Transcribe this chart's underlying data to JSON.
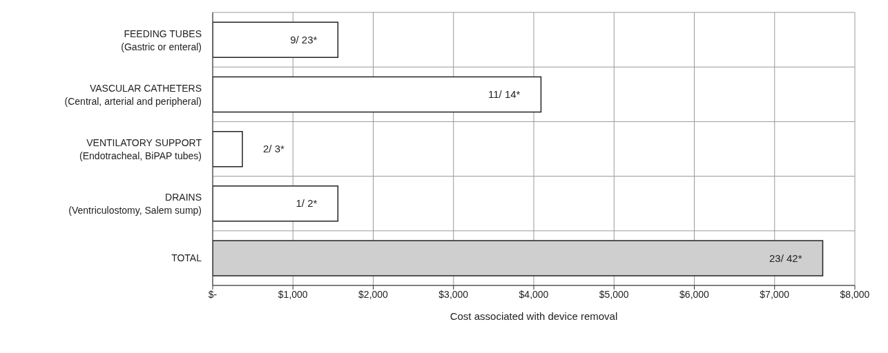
{
  "chart_data": {
    "type": "bar",
    "orientation": "horizontal",
    "xlabel": "Cost associated with device removal",
    "categories": [
      "FEEDING TUBES\n(Gastric or enteral)",
      "VASCULAR CATHETERS\n(Central, arterial and peripheral)",
      "VENTILATORY SUPPORT\n(Endotracheal, BiPAP tubes)",
      "DRAINS\n(Ventriculostomy, Salem sump)",
      "TOTAL"
    ],
    "values": [
      1560,
      4090,
      370,
      1560,
      7600
    ],
    "colors": [
      "#ffffff",
      "#ffffff",
      "#ffffff",
      "#ffffff",
      "#cfcfcf"
    ],
    "value_labels": [
      "9/ 23*",
      "11/ 14*",
      "2/ 3*",
      "1/ 2*",
      "23/ 42*"
    ],
    "xlim": [
      0,
      8000
    ],
    "xticks": [
      {
        "value": 0,
        "label": "$-"
      },
      {
        "value": 1000,
        "label": "$1,000"
      },
      {
        "value": 2000,
        "label": "$2,000"
      },
      {
        "value": 3000,
        "label": "$3,000"
      },
      {
        "value": 4000,
        "label": "$4,000"
      },
      {
        "value": 5000,
        "label": "$5,000"
      },
      {
        "value": 6000,
        "label": "$6,000"
      },
      {
        "value": 7000,
        "label": "$7,000"
      },
      {
        "value": 8000,
        "label": "$8,000"
      }
    ],
    "grid": true,
    "legend": false
  }
}
